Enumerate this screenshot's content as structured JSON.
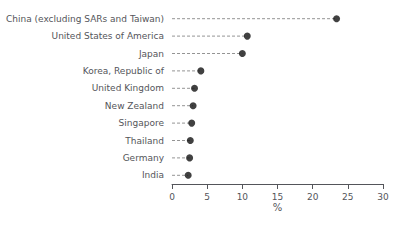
{
  "chart_data": {
    "type": "lollipop",
    "orientation": "horizontal",
    "categories": [
      "India",
      "Germany",
      "Thailand",
      "Singapore",
      "New Zealand",
      "United Kingdom",
      "Korea, Republic of",
      "Japan",
      "United States of America",
      "China (excluding SARs and Taiwan)"
    ],
    "values": [
      2.3,
      2.5,
      2.6,
      2.8,
      3.0,
      3.2,
      4.1,
      10.0,
      10.7,
      23.4
    ],
    "xlabel": "%",
    "xlim": [
      0,
      30
    ],
    "xticks": [
      0,
      5,
      10,
      15,
      20,
      25,
      30
    ],
    "color": "#111111",
    "line_style": "dashed",
    "grid": false
  }
}
